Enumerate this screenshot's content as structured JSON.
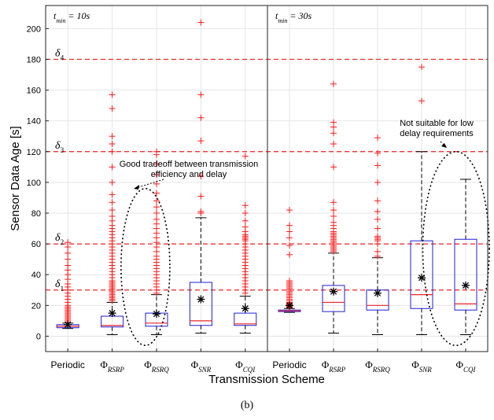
{
  "figure_label": "(b)",
  "chart_data": {
    "type": "box",
    "ylabel": "Sensor Data Age [s]",
    "xlabel": "Transmission Scheme",
    "ylim": [
      -10,
      215
    ],
    "yticks": [
      0,
      20,
      40,
      60,
      80,
      100,
      120,
      140,
      160,
      180,
      200
    ],
    "grid": true,
    "thresholds": [
      {
        "label": "δ1",
        "sub": "1",
        "value": 30
      },
      {
        "label": "δ2",
        "sub": "2",
        "value": 60
      },
      {
        "label": "δ3",
        "sub": "3",
        "value": 120
      },
      {
        "label": "δ4",
        "sub": "4",
        "value": 180
      }
    ],
    "panels": [
      {
        "title": "t_min = 10s",
        "title_main": "t",
        "title_sub": "min",
        "title_rest": " = 10s",
        "categories": [
          {
            "label": "Periodic",
            "sub": ""
          },
          {
            "label": "Φ",
            "sub": "RSRP"
          },
          {
            "label": "Φ",
            "sub": "RSRQ"
          },
          {
            "label": "Φ",
            "sub": "SNR"
          },
          {
            "label": "Φ",
            "sub": "CQI"
          }
        ],
        "boxes": [
          {
            "min": 5,
            "q1": 5.5,
            "median": 6.5,
            "q3": 7.5,
            "max": 8.5,
            "mean": 7.5,
            "outliers": [
              9,
              10,
              11,
              12,
              13,
              14,
              15,
              16,
              17,
              18,
              19,
              20,
              22,
              24,
              26,
              28,
              30,
              32,
              34,
              37,
              40,
              43,
              46,
              50,
              54,
              58,
              61
            ]
          },
          {
            "min": 1,
            "q1": 6,
            "median": 7,
            "q3": 13,
            "max": 22,
            "mean": 15,
            "outliers": [
              23,
              24,
              25,
              26,
              27,
              28,
              29,
              30,
              31,
              32,
              33,
              34,
              35,
              36,
              38,
              40,
              42,
              44,
              46,
              48,
              50,
              52,
              54,
              56,
              58,
              60,
              62,
              64,
              66,
              68,
              70,
              72,
              75,
              78,
              82,
              87,
              92,
              100,
              110,
              120,
              125,
              130,
              148,
              157
            ]
          },
          {
            "min": 1,
            "q1": 6.5,
            "median": 8.5,
            "q3": 15,
            "max": 27,
            "mean": 14.5,
            "outliers": [
              28,
              30,
              32,
              34,
              36,
              38,
              40,
              42,
              44,
              46,
              48,
              50,
              52,
              55,
              58,
              61,
              64,
              67,
              70,
              73,
              76,
              80,
              84,
              88,
              93,
              99,
              105,
              112,
              118,
              120
            ]
          },
          {
            "min": 2,
            "q1": 7,
            "median": 10,
            "q3": 35,
            "max": 77,
            "mean": 24,
            "outliers": [
              80,
              81,
              91,
              104,
              127,
              142,
              157,
              204
            ]
          },
          {
            "min": 2,
            "q1": 7,
            "median": 8,
            "q3": 15,
            "max": 26,
            "mean": 18,
            "outliers": [
              28,
              30,
              32,
              34,
              36,
              38,
              40,
              42,
              44,
              46,
              48,
              50,
              52,
              54,
              56,
              58,
              60,
              62,
              63,
              64,
              65,
              66,
              68,
              71,
              75,
              80,
              85,
              117
            ]
          }
        ],
        "annotation": "Good tradeoff between transmission efficiency and delay",
        "annotation_lines": [
          "Good tradeoff between transmission",
          "efficiency and delay"
        ],
        "ellipse_center": [
          1.75,
          45
        ],
        "ellipse_radius": [
          0.55,
          51
        ],
        "arrow_target": [
          1.95,
          95
        ]
      },
      {
        "title": "t_min = 30s",
        "title_main": "t",
        "title_sub": "min",
        "title_rest": " = 30s",
        "categories": [
          {
            "label": "Periodic",
            "sub": ""
          },
          {
            "label": "Φ",
            "sub": "RSRP"
          },
          {
            "label": "Φ",
            "sub": "RSRQ"
          },
          {
            "label": "Φ",
            "sub": "SNR"
          },
          {
            "label": "Φ",
            "sub": "CQI"
          }
        ],
        "boxes": [
          {
            "min": 15.5,
            "q1": 16,
            "median": 16.5,
            "q3": 17,
            "max": 18,
            "mean": 20,
            "outliers": [
              18.5,
              19,
              19.5,
              20,
              20.5,
              21,
              21.5,
              22,
              23,
              24,
              25,
              26,
              27,
              28,
              29,
              30,
              31,
              32,
              33,
              34,
              35,
              36,
              53,
              59,
              64,
              68,
              72,
              82
            ]
          },
          {
            "min": 2,
            "q1": 16,
            "median": 22,
            "q3": 33,
            "max": 54,
            "mean": 29,
            "outliers": [
              55,
              56,
              57,
              58,
              59,
              60,
              61,
              62,
              63,
              64,
              65,
              66,
              67,
              68,
              70,
              72,
              74,
              78,
              82,
              87,
              110,
              125,
              132,
              136,
              139,
              164
            ]
          },
          {
            "min": 1,
            "q1": 17,
            "median": 20,
            "q3": 30,
            "max": 51,
            "mean": 28,
            "outliers": [
              52,
              55,
              60,
              62,
              63,
              64,
              65,
              70,
              76,
              81,
              88,
              100,
              111,
              119,
              129
            ]
          },
          {
            "min": 1,
            "q1": 18,
            "median": 27,
            "q3": 62,
            "max": 120,
            "mean": 38,
            "outliers": [
              153,
              175
            ]
          },
          {
            "min": 1,
            "q1": 17,
            "median": 21,
            "q3": 63,
            "max": 102,
            "mean": 33,
            "outliers": []
          }
        ],
        "annotation": "Not suitable for low delay requirements",
        "annotation_lines": [
          "Not suitable for low",
          "delay requirements"
        ],
        "ellipse_center": [
          3.75,
          57
        ],
        "ellipse_radius": [
          0.75,
          63
        ],
        "arrow_target": [
          3.95,
          119
        ]
      }
    ]
  }
}
